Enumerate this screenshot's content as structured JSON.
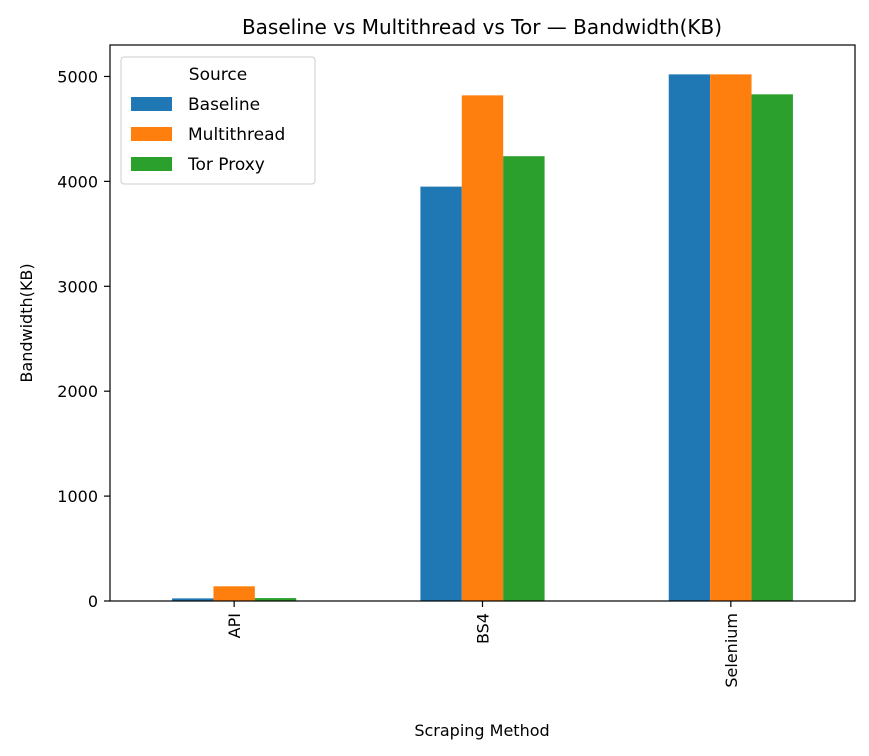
{
  "chart_data": {
    "type": "bar",
    "title": "Baseline vs Multithread vs Tor — Bandwidth(KB)",
    "xlabel": "Scraping Method",
    "ylabel": "Bandwidth(KB)",
    "categories": [
      "API",
      "BS4",
      "Selenium"
    ],
    "ylim": [
      0,
      5300
    ],
    "yticks": [
      0,
      1000,
      2000,
      3000,
      4000,
      5000
    ],
    "ytick_labels": [
      "0",
      "1000",
      "2000",
      "3000",
      "4000",
      "5000"
    ],
    "grid": false,
    "legend": {
      "title": "Source",
      "placement": "top-left"
    },
    "series": [
      {
        "name": "Baseline",
        "color": "#1f77b4",
        "values": [
          25,
          3950,
          5020
        ]
      },
      {
        "name": "Multithread",
        "color": "#ff7f0e",
        "values": [
          140,
          4820,
          5020
        ]
      },
      {
        "name": "Tor Proxy",
        "color": "#2ca02c",
        "values": [
          28,
          4240,
          4830
        ]
      }
    ]
  }
}
